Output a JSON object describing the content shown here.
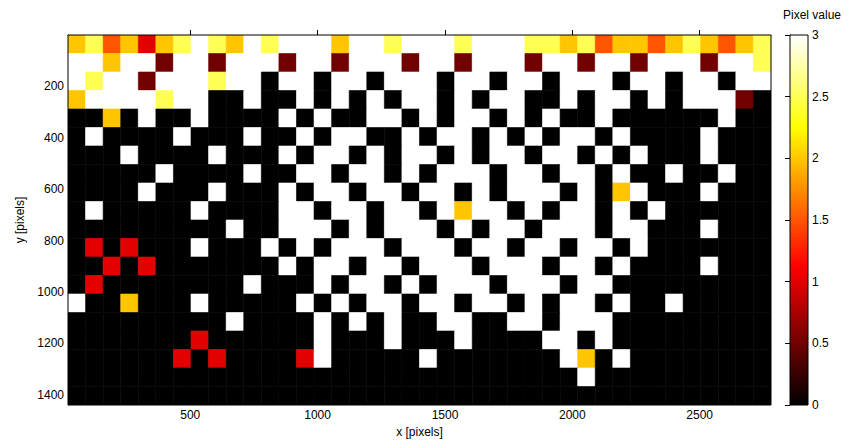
{
  "chart_data": {
    "type": "heatmap",
    "xlabel": "x [pixels]",
    "ylabel": "y [pixels]",
    "xlim": [
      20,
      2780
    ],
    "ylim": [
      0,
      1440
    ],
    "xticks": [
      500,
      1000,
      1500,
      2000,
      2500
    ],
    "yticks": [
      200,
      400,
      600,
      800,
      1000,
      1200,
      1400
    ],
    "x_edges": [
      20,
      89,
      158,
      227,
      296,
      365,
      434,
      503,
      572,
      641,
      710,
      779,
      848,
      917,
      986,
      1055,
      1124,
      1193,
      1262,
      1331,
      1400,
      1469,
      1538,
      1607,
      1676,
      1745,
      1814,
      1883,
      1952,
      2021,
      2090,
      2159,
      2228,
      2297,
      2366,
      2435,
      2504,
      2573,
      2642,
      2711,
      2780
    ],
    "y_edges": [
      0,
      72,
      144,
      216,
      288,
      360,
      432,
      504,
      576,
      648,
      720,
      792,
      864,
      936,
      1008,
      1080,
      1152,
      1224,
      1296,
      1368,
      1440
    ],
    "cells": [
      [
        2,
        2.5,
        1.5,
        2,
        1,
        2,
        2.5,
        3,
        2.5,
        2,
        3,
        2.5,
        3,
        3,
        3,
        2,
        3,
        3,
        2.5,
        3,
        3,
        3,
        2.5,
        3,
        3,
        3,
        2.5,
        2.5,
        2,
        2.5,
        1.5,
        2,
        2,
        1.5,
        2,
        2.5,
        2,
        1.5,
        2,
        2.5
      ],
      [
        3,
        3,
        2,
        3,
        3,
        0.5,
        3,
        3,
        0.5,
        3,
        3,
        3,
        0.5,
        3,
        3,
        0.5,
        3,
        3,
        3,
        0.5,
        3,
        3,
        0.5,
        3,
        3,
        3,
        0.5,
        3,
        3,
        0.5,
        3,
        3,
        0.5,
        3,
        3,
        3,
        0.5,
        3,
        3,
        2.5
      ],
      [
        3,
        2.5,
        3,
        3,
        0.5,
        3,
        3,
        3,
        2.5,
        3,
        3,
        0,
        3,
        3,
        0,
        3,
        3,
        0,
        3,
        3,
        3,
        0,
        3,
        3,
        0,
        3,
        3,
        0,
        3,
        3,
        3,
        0,
        3,
        3,
        0,
        3,
        3,
        0,
        3,
        3
      ],
      [
        2,
        3,
        3,
        3,
        3,
        2.5,
        3,
        3,
        0,
        0,
        3,
        0,
        0,
        3,
        0,
        3,
        0,
        3,
        0,
        3,
        3,
        0,
        3,
        0,
        3,
        3,
        0,
        0,
        3,
        0,
        3,
        3,
        0,
        3,
        0,
        3,
        3,
        3,
        0.5,
        0
      ],
      [
        0,
        0,
        2,
        0,
        3,
        0,
        0,
        3,
        0,
        0,
        0,
        0,
        3,
        0,
        3,
        0,
        0,
        3,
        3,
        0,
        3,
        0,
        3,
        3,
        0,
        3,
        0,
        3,
        0,
        0,
        3,
        0,
        0,
        0,
        0,
        0,
        0,
        3,
        0,
        0
      ],
      [
        0,
        3,
        0,
        0,
        0,
        0,
        3,
        0,
        0,
        0,
        3,
        0,
        0,
        3,
        0,
        3,
        3,
        0,
        0,
        3,
        0,
        3,
        3,
        0,
        3,
        0,
        3,
        0,
        3,
        3,
        0,
        3,
        0,
        0,
        0,
        0,
        3,
        0,
        0,
        0
      ],
      [
        0,
        0,
        0,
        3,
        0,
        0,
        0,
        0,
        3,
        0,
        0,
        0,
        3,
        0,
        3,
        3,
        0,
        3,
        0,
        3,
        3,
        0,
        3,
        0,
        3,
        3,
        0,
        3,
        3,
        0,
        3,
        0,
        3,
        0,
        0,
        0,
        3,
        0,
        0,
        0
      ],
      [
        0,
        0,
        0,
        0,
        0,
        3,
        0,
        0,
        0,
        0,
        3,
        0,
        0,
        3,
        3,
        0,
        3,
        3,
        0,
        3,
        0,
        3,
        3,
        3,
        0,
        3,
        3,
        0,
        3,
        3,
        0,
        3,
        0,
        0,
        3,
        0,
        0,
        3,
        0,
        0
      ],
      [
        0,
        0,
        0,
        0,
        3,
        0,
        0,
        0,
        3,
        0,
        0,
        0,
        3,
        0,
        3,
        3,
        0,
        3,
        3,
        0,
        3,
        3,
        0,
        3,
        0,
        3,
        3,
        3,
        0,
        3,
        0,
        2,
        3,
        0,
        0,
        0,
        3,
        0,
        0,
        0
      ],
      [
        0,
        3,
        0,
        0,
        0,
        0,
        0,
        3,
        0,
        0,
        0,
        0,
        3,
        3,
        0,
        3,
        3,
        0,
        3,
        3,
        0,
        3,
        2,
        3,
        3,
        0,
        3,
        0,
        3,
        3,
        0,
        3,
        0,
        3,
        0,
        0,
        0,
        0,
        0,
        0
      ],
      [
        0,
        0,
        0,
        0,
        0,
        0,
        0,
        0,
        0,
        3,
        0,
        0,
        3,
        3,
        3,
        0,
        3,
        0,
        3,
        3,
        3,
        0,
        3,
        0,
        3,
        3,
        0,
        3,
        3,
        3,
        0,
        3,
        3,
        0,
        0,
        0,
        3,
        0,
        0,
        0
      ],
      [
        0,
        1,
        0,
        1,
        0,
        0,
        0,
        3,
        0,
        0,
        0,
        3,
        0,
        3,
        0,
        3,
        3,
        3,
        0,
        3,
        3,
        3,
        0,
        3,
        3,
        0,
        3,
        3,
        0,
        3,
        3,
        0,
        3,
        0,
        0,
        0,
        0,
        0,
        0,
        0
      ],
      [
        0,
        0,
        1,
        0,
        1,
        0,
        0,
        0,
        0,
        0,
        0,
        0,
        3,
        0,
        3,
        3,
        0,
        3,
        3,
        0,
        3,
        3,
        3,
        0,
        3,
        3,
        3,
        0,
        3,
        3,
        0,
        3,
        0,
        0,
        0,
        0,
        3,
        0,
        0,
        0
      ],
      [
        0,
        1,
        0,
        0,
        0,
        0,
        0,
        0,
        0,
        0,
        3,
        0,
        0,
        0,
        3,
        0,
        3,
        3,
        0,
        3,
        0,
        3,
        3,
        3,
        0,
        3,
        3,
        3,
        0,
        3,
        3,
        0,
        0,
        0,
        0,
        0,
        0,
        0,
        0,
        0
      ],
      [
        3,
        0,
        0,
        2,
        0,
        0,
        0,
        3,
        0,
        0,
        0,
        0,
        0,
        3,
        0,
        3,
        0,
        3,
        3,
        0,
        3,
        3,
        0,
        3,
        3,
        0,
        3,
        0,
        3,
        3,
        0,
        3,
        0,
        0,
        3,
        0,
        0,
        0,
        0,
        0
      ],
      [
        0,
        0,
        0,
        0,
        0,
        0,
        0,
        0,
        0,
        3,
        0,
        0,
        0,
        0,
        3,
        0,
        3,
        0,
        3,
        0,
        0,
        3,
        3,
        0,
        0,
        3,
        3,
        0,
        3,
        3,
        3,
        0,
        0,
        0,
        0,
        0,
        0,
        0,
        0,
        0
      ],
      [
        0,
        0,
        0,
        0,
        0,
        0,
        0,
        1,
        0,
        0,
        0,
        0,
        0,
        0,
        3,
        0,
        0,
        0,
        3,
        0,
        0,
        0,
        3,
        0,
        0,
        0,
        0,
        3,
        3,
        0,
        3,
        0,
        0,
        0,
        0,
        0,
        0,
        0,
        0,
        0
      ],
      [
        0,
        0,
        0,
        0,
        0,
        0,
        1,
        0,
        1,
        0,
        0,
        0,
        0,
        1,
        3,
        0,
        0,
        0,
        0,
        0,
        3,
        0,
        0,
        0,
        0,
        0,
        0,
        0,
        3,
        2,
        0,
        3,
        0,
        0,
        0,
        0,
        0,
        0,
        0,
        0
      ],
      [
        0,
        0,
        0,
        0,
        0,
        0,
        0,
        0,
        0,
        0,
        0,
        0,
        0,
        0,
        0,
        0,
        0,
        0,
        0,
        0,
        0,
        0,
        0,
        0,
        0,
        0,
        0,
        0,
        0,
        3,
        0,
        0,
        0,
        0,
        0,
        0,
        0,
        0,
        0,
        0
      ],
      [
        0,
        0,
        0,
        0,
        0,
        0,
        0,
        0,
        0,
        0,
        0,
        0,
        0,
        0,
        0,
        0,
        0,
        0,
        0,
        0,
        0,
        0,
        0,
        0,
        0,
        0,
        0,
        0,
        0,
        0,
        0,
        0,
        0,
        0,
        0,
        0,
        0,
        0,
        0,
        0
      ]
    ],
    "colorbar": {
      "title": "Pixel value",
      "range": [
        0,
        3
      ],
      "ticks": [
        0,
        0.5,
        1,
        1.5,
        2,
        2.5,
        3
      ]
    }
  }
}
